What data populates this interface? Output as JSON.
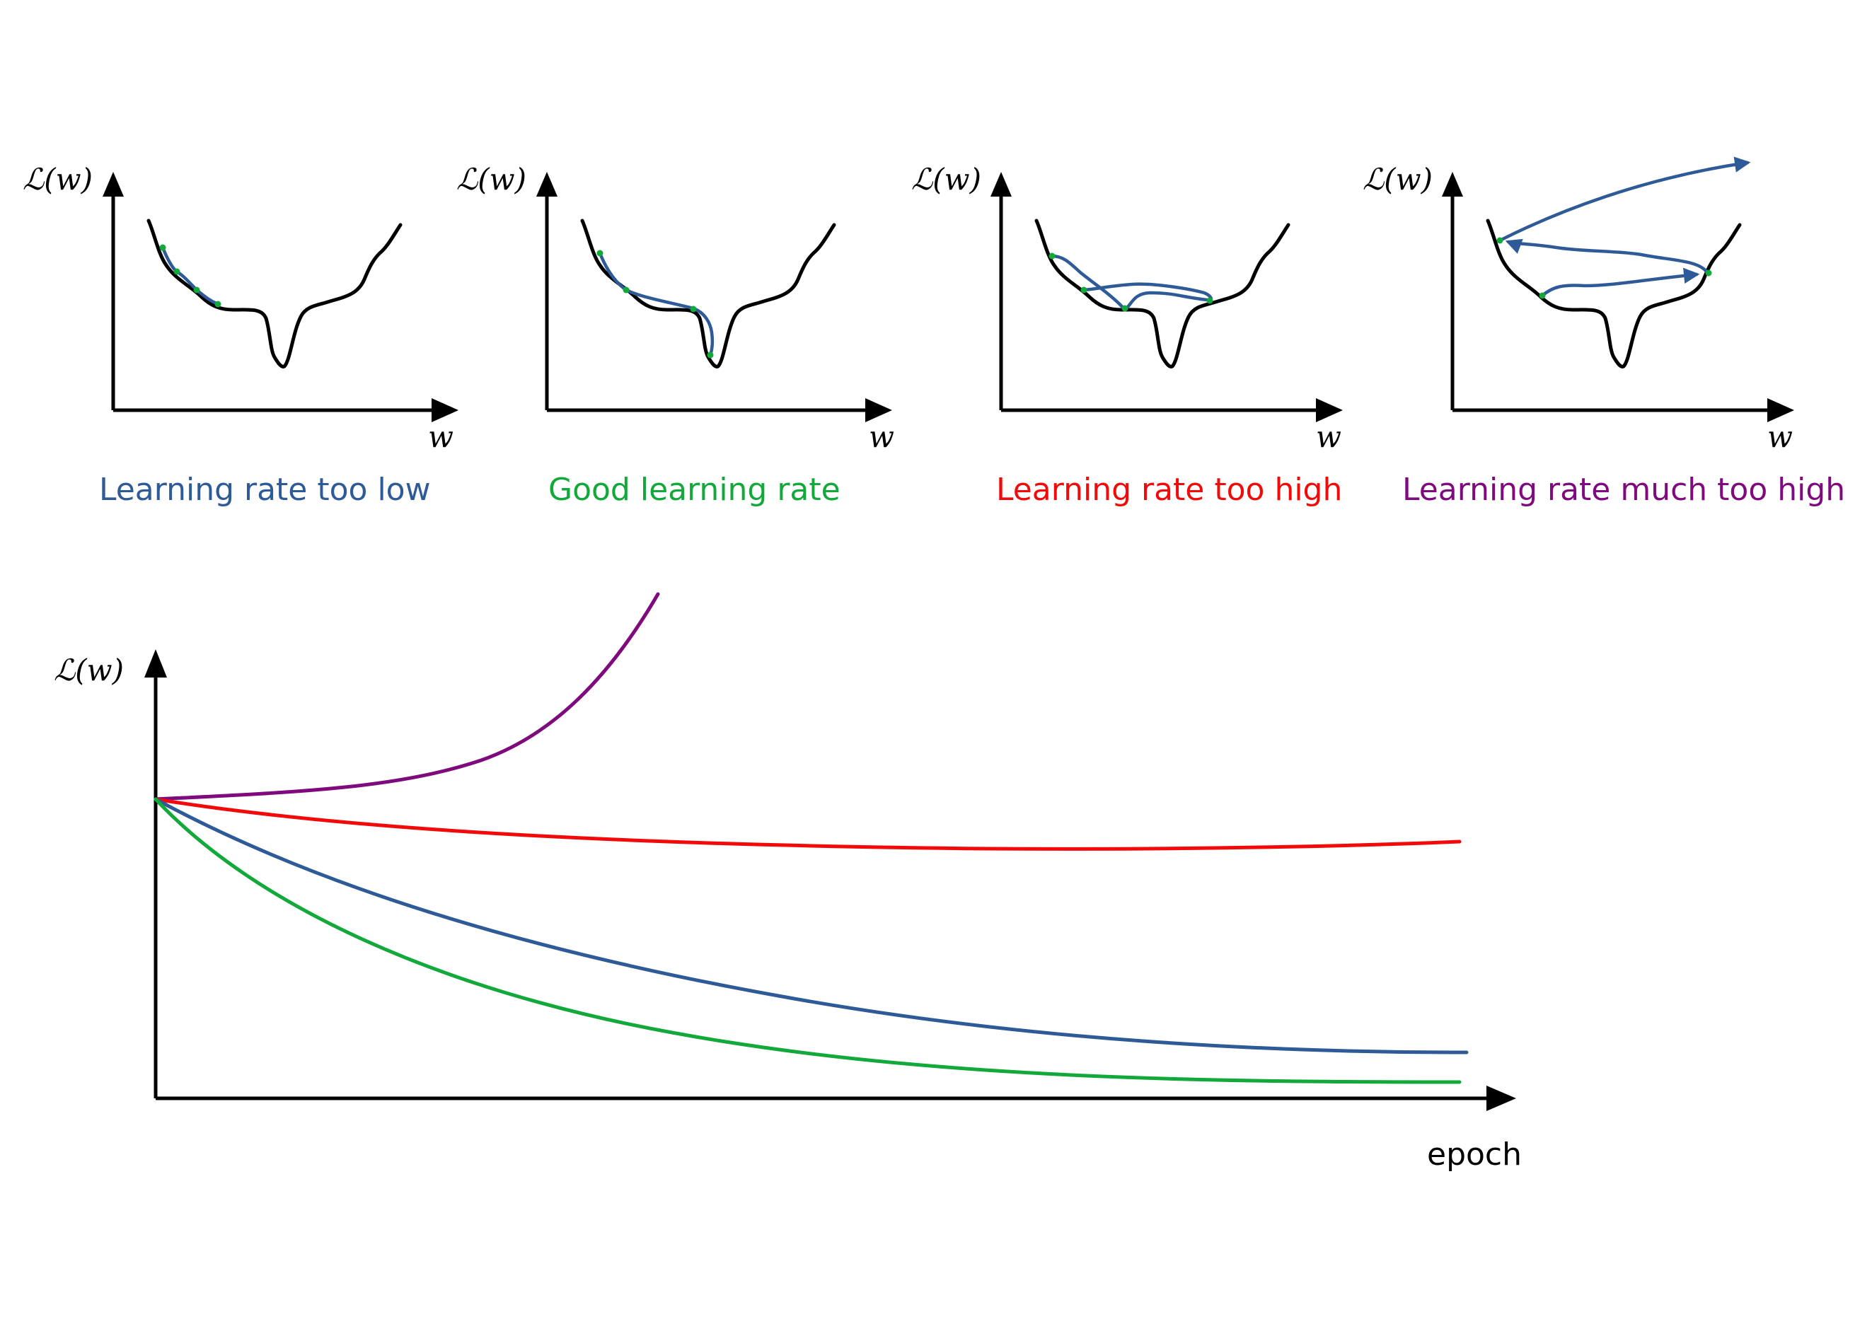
{
  "colors": {
    "blue": "#2e5b97",
    "green": "#12a83a",
    "red": "#f20a0a",
    "purple": "#7e0a7e",
    "black": "#000000"
  },
  "panels": [
    {
      "ylabel": "ℒ(w)",
      "xlabel": "w",
      "caption": "Learning rate too low",
      "caption_color": "#2e5b97"
    },
    {
      "ylabel": "ℒ(w)",
      "xlabel": "w",
      "caption": "Good learning rate",
      "caption_color": "#12a83a"
    },
    {
      "ylabel": "ℒ(w)",
      "xlabel": "w",
      "caption": "Learning rate too high",
      "caption_color": "#f20a0a"
    },
    {
      "ylabel": "ℒ(w)",
      "xlabel": "w",
      "caption": "Learning rate much too high",
      "caption_color": "#7e0a7e"
    }
  ],
  "main": {
    "ylabel": "ℒ(w)",
    "xlabel": "epoch"
  }
}
